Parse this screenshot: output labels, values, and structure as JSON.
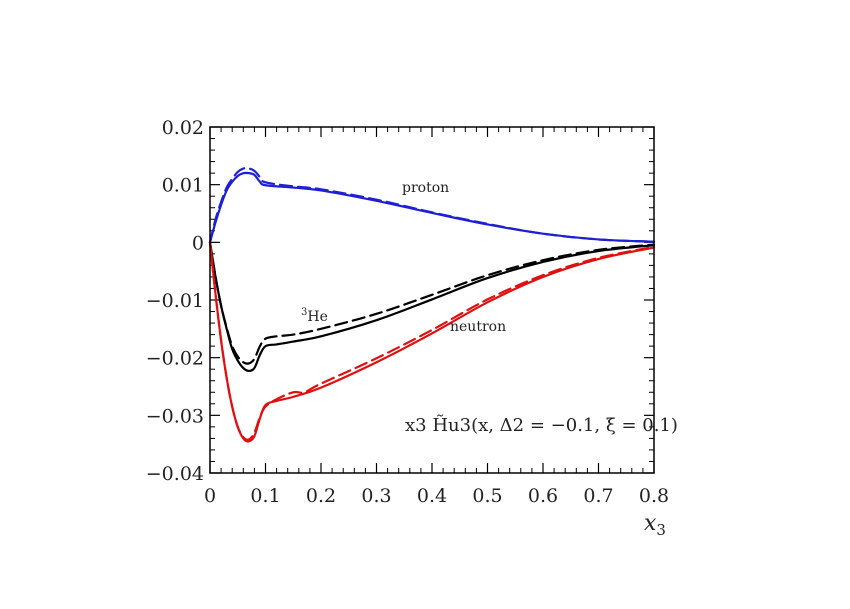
{
  "chart_data": {
    "type": "line",
    "xlabel": "x3",
    "xlabel_main": "x",
    "xlabel_sub": "3",
    "ylabel": "",
    "xlim": [
      0,
      0.8
    ],
    "ylim": [
      -0.04,
      0.02
    ],
    "x_ticks": [
      0,
      0.1,
      0.2,
      0.3,
      0.4,
      0.5,
      0.6,
      0.7,
      0.8
    ],
    "x_tick_labels": [
      "0",
      "0.1",
      "0.2",
      "0.3",
      "0.4",
      "0.5",
      "0.6",
      "0.7",
      "0.8"
    ],
    "y_ticks": [
      0.02,
      0.01,
      0,
      -0.01,
      -0.02,
      -0.03,
      -0.04
    ],
    "y_tick_labels": [
      "0.02",
      "0.01",
      "0",
      "−0.01",
      "−0.02",
      "−0.03",
      "−0.04"
    ],
    "annotation": "x3 H̃u3(x, Δ2 = −0.1, ξ = 0.1)",
    "labels": {
      "proton": "proton",
      "he3_sup": "3",
      "he3_main": "He",
      "neutron": "neutron"
    },
    "colors": {
      "proton": "#1f1fd6",
      "he3": "#000000",
      "neutron": "#e01010"
    },
    "series": [
      {
        "name": "proton",
        "style": "solid",
        "x": [
          0,
          0.01,
          0.02,
          0.03,
          0.04,
          0.05,
          0.06,
          0.07,
          0.08,
          0.09,
          0.1,
          0.15,
          0.2,
          0.3,
          0.4,
          0.5,
          0.6,
          0.7,
          0.8
        ],
        "y": [
          0,
          0.0035,
          0.0065,
          0.009,
          0.0105,
          0.0115,
          0.012,
          0.012,
          0.0117,
          0.0105,
          0.0099,
          0.0095,
          0.009,
          0.0072,
          0.0051,
          0.0031,
          0.0015,
          0.0005,
          0.0001
        ]
      },
      {
        "name": "proton",
        "style": "dashed",
        "x": [
          0,
          0.01,
          0.02,
          0.03,
          0.04,
          0.05,
          0.06,
          0.07,
          0.08,
          0.09,
          0.1,
          0.15,
          0.2,
          0.3,
          0.4,
          0.5,
          0.6,
          0.7,
          0.8
        ],
        "y": [
          0,
          0.004,
          0.007,
          0.0095,
          0.011,
          0.0122,
          0.0128,
          0.0128,
          0.0124,
          0.0113,
          0.0104,
          0.0097,
          0.0092,
          0.0074,
          0.0052,
          0.0032,
          0.0015,
          0.0005,
          0.0001
        ]
      },
      {
        "name": "3He",
        "style": "solid",
        "x": [
          0,
          0.01,
          0.02,
          0.03,
          0.04,
          0.05,
          0.06,
          0.07,
          0.08,
          0.09,
          0.1,
          0.12,
          0.15,
          0.2,
          0.3,
          0.4,
          0.5,
          0.6,
          0.7,
          0.8
        ],
        "y": [
          0,
          -0.006,
          -0.011,
          -0.015,
          -0.0185,
          -0.0205,
          -0.0218,
          -0.0223,
          -0.0218,
          -0.0195,
          -0.018,
          -0.0177,
          -0.0172,
          -0.0163,
          -0.0135,
          -0.0099,
          -0.0062,
          -0.0034,
          -0.0015,
          -0.0005
        ]
      },
      {
        "name": "3He",
        "style": "dashed",
        "x": [
          0,
          0.01,
          0.02,
          0.03,
          0.04,
          0.05,
          0.06,
          0.07,
          0.08,
          0.09,
          0.1,
          0.12,
          0.15,
          0.2,
          0.3,
          0.4,
          0.5,
          0.6,
          0.7,
          0.8
        ],
        "y": [
          0,
          -0.006,
          -0.011,
          -0.0148,
          -0.018,
          -0.0198,
          -0.0208,
          -0.021,
          -0.0202,
          -0.018,
          -0.0167,
          -0.0163,
          -0.016,
          -0.015,
          -0.0124,
          -0.0091,
          -0.0057,
          -0.0031,
          -0.0013,
          -0.0004
        ]
      },
      {
        "name": "neutron",
        "style": "solid",
        "x": [
          0,
          0.01,
          0.02,
          0.03,
          0.04,
          0.05,
          0.06,
          0.07,
          0.08,
          0.09,
          0.1,
          0.12,
          0.15,
          0.2,
          0.3,
          0.4,
          0.5,
          0.6,
          0.7,
          0.8
        ],
        "y": [
          0,
          -0.009,
          -0.017,
          -0.0235,
          -0.0285,
          -0.032,
          -0.034,
          -0.0345,
          -0.0336,
          -0.0305,
          -0.0282,
          -0.0275,
          -0.0268,
          -0.0252,
          -0.0208,
          -0.0158,
          -0.0104,
          -0.006,
          -0.0029,
          -0.0009
        ]
      },
      {
        "name": "neutron",
        "style": "dashed",
        "x": [
          0,
          0.01,
          0.02,
          0.03,
          0.04,
          0.05,
          0.06,
          0.07,
          0.08,
          0.09,
          0.1,
          0.12,
          0.15,
          0.17,
          0.2,
          0.3,
          0.4,
          0.5,
          0.6,
          0.7,
          0.8
        ],
        "y": [
          0,
          -0.009,
          -0.017,
          -0.0235,
          -0.0285,
          -0.032,
          -0.0338,
          -0.0342,
          -0.033,
          -0.0303,
          -0.0285,
          -0.0272,
          -0.026,
          -0.026,
          -0.0245,
          -0.0201,
          -0.0152,
          -0.0099,
          -0.0057,
          -0.0027,
          -0.0008
        ]
      }
    ]
  }
}
